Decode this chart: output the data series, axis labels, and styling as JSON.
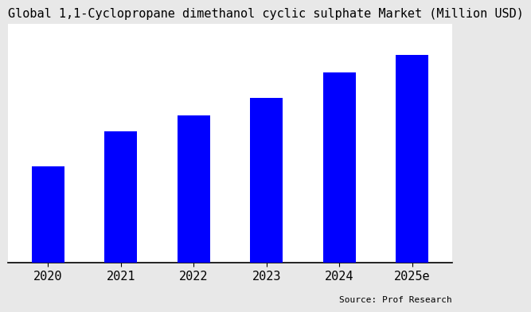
{
  "title": "Global 1,1-Cyclopropane dimethanol cyclic sulphate Market (Million USD)",
  "categories": [
    "2020",
    "2021",
    "2022",
    "2023",
    "2024",
    "2025e"
  ],
  "values": [
    38,
    52,
    58,
    65,
    75,
    82
  ],
  "bar_color": "#0000ff",
  "figure_bg_color": "#e8e8e8",
  "plot_bg_color": "#ffffff",
  "title_fontsize": 11,
  "tick_fontsize": 11,
  "source_text": "Source: Prof Research",
  "source_fontsize": 8,
  "bar_width": 0.45
}
